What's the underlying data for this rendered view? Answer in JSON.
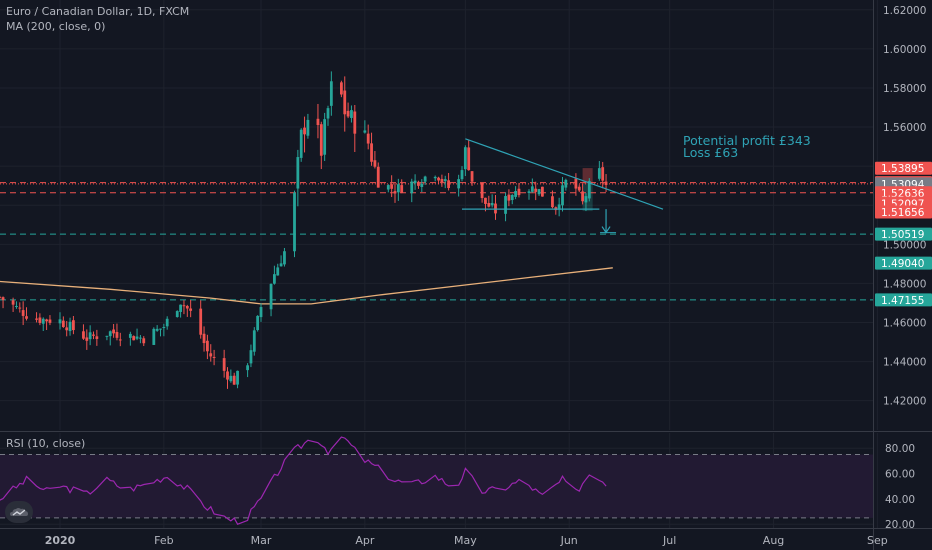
{
  "header": {
    "symbol_line": "Euro / Canadian Dollar, 1D, FXCM",
    "indicator_line": "MA (200, close, 0)",
    "rsi_line": "RSI (10, close)"
  },
  "annotations": [
    "Potential profit £343",
    "Loss £63"
  ],
  "colors": {
    "background": "#131722",
    "up": "#26a69a",
    "down": "#ef5350",
    "ma": "#e8b07a",
    "trendline": "#2fa3b5",
    "rsi_line": "#9c27b0",
    "rsi_band": "#221a33",
    "red_level": "#ef5350",
    "green_level": "#26a69a",
    "text": "#b2b5be"
  },
  "chart_data": [
    {
      "type": "candlestick",
      "x_ticks": [
        "2020",
        "Feb",
        "Mar",
        "Apr",
        "May",
        "Jun",
        "Jul",
        "Aug",
        "Sep"
      ],
      "x_tick_days": [
        0,
        31,
        60,
        91,
        121,
        152,
        182,
        213,
        244
      ],
      "y_ticks": [
        1.42,
        1.44,
        1.46,
        1.48,
        1.5,
        1.52,
        1.54,
        1.56,
        1.58,
        1.6,
        1.62
      ],
      "ylim": [
        1.405,
        1.625
      ],
      "red_levels": [
        1.53155,
        1.52636
      ],
      "green_levels": [
        1.50519,
        1.47155
      ],
      "current_price_level": 1.53094,
      "price_labels": [
        {
          "text": "1.53895",
          "value": 1.53895,
          "color": "#ef5350"
        },
        {
          "text": "1.53155",
          "value": 1.53155,
          "color": "#ef5350"
        },
        {
          "text": "1.53094",
          "value": 1.53094,
          "color": "#787b86"
        },
        {
          "text": "1.52636",
          "value": 1.52636,
          "color": "#ef5350"
        },
        {
          "text": "01:14:51",
          "value": 1.5211,
          "color": "#ef5350"
        },
        {
          "text": "1.52097",
          "value": 1.52097,
          "color": "#ef5350"
        },
        {
          "text": "1.51656",
          "value": 1.51656,
          "color": "#ef5350"
        },
        {
          "text": "1.50519",
          "value": 1.50519,
          "color": "#26a69a"
        },
        {
          "text": "1.49040",
          "value": 1.4904,
          "color": "#26a69a"
        },
        {
          "text": "1.47155",
          "value": 1.47155,
          "color": "#26a69a"
        }
      ],
      "series": [
        {
          "name": "MA (200, close, 0)",
          "points": [
            [
              -18,
              1.481
            ],
            [
              15,
              1.477
            ],
            [
              45,
              1.4725
            ],
            [
              60,
              1.4695
            ],
            [
              75,
              1.4695
            ],
            [
              95,
              1.474
            ],
            [
              120,
              1.479
            ],
            [
              140,
              1.483
            ],
            [
              165,
              1.488
            ]
          ]
        }
      ],
      "trendlines": [
        {
          "from": [
            121,
            1.554
          ],
          "to": [
            180,
            1.518
          ]
        },
        {
          "from": [
            120,
            1.518
          ],
          "to": [
            161,
            1.518
          ]
        }
      ],
      "target_arrow": {
        "x": 163,
        "from": 1.518,
        "to": 1.506
      },
      "loss_zone": {
        "from_day": 156,
        "to_day": 159,
        "low": 1.531,
        "high": 1.539
      },
      "profit_zone": {
        "from_day": 156,
        "to_day": 159,
        "low": 1.517,
        "high": 1.531
      },
      "anchors": [
        [
          -18,
          1.473
        ],
        [
          -8,
          1.462
        ],
        [
          0,
          1.461
        ],
        [
          8,
          1.452
        ],
        [
          15,
          1.455
        ],
        [
          25,
          1.452
        ],
        [
          31,
          1.458
        ],
        [
          36,
          1.471
        ],
        [
          40,
          1.463
        ],
        [
          44,
          1.445
        ],
        [
          48,
          1.437
        ],
        [
          52,
          1.43
        ],
        [
          56,
          1.44
        ],
        [
          60,
          1.468
        ],
        [
          64,
          1.485
        ],
        [
          68,
          1.5
        ],
        [
          70,
          1.525
        ],
        [
          72,
          1.555
        ],
        [
          75,
          1.572
        ],
        [
          78,
          1.548
        ],
        [
          82,
          1.59
        ],
        [
          85,
          1.568
        ],
        [
          88,
          1.562
        ],
        [
          92,
          1.552
        ],
        [
          95,
          1.532
        ],
        [
          100,
          1.528
        ],
        [
          106,
          1.532
        ],
        [
          112,
          1.537
        ],
        [
          118,
          1.525
        ],
        [
          121,
          1.548
        ],
        [
          124,
          1.525
        ],
        [
          130,
          1.517
        ],
        [
          136,
          1.528
        ],
        [
          142,
          1.529
        ],
        [
          148,
          1.519
        ],
        [
          152,
          1.536
        ],
        [
          156,
          1.521
        ],
        [
          159,
          1.534
        ],
        [
          161,
          1.537
        ],
        [
          163,
          1.53
        ]
      ]
    },
    {
      "type": "line",
      "name": "RSI (10, close)",
      "y_ticks": [
        20,
        40,
        60,
        80
      ],
      "ylim": [
        17,
        92
      ],
      "band": [
        25,
        75
      ],
      "anchors": [
        [
          -18,
          40
        ],
        [
          -10,
          55
        ],
        [
          -4,
          46
        ],
        [
          0,
          50
        ],
        [
          8,
          44
        ],
        [
          14,
          55
        ],
        [
          20,
          47
        ],
        [
          26,
          52
        ],
        [
          32,
          58
        ],
        [
          38,
          48
        ],
        [
          44,
          33
        ],
        [
          50,
          24
        ],
        [
          55,
          22
        ],
        [
          60,
          40
        ],
        [
          66,
          65
        ],
        [
          70,
          78
        ],
        [
          76,
          90
        ],
        [
          80,
          78
        ],
        [
          85,
          88
        ],
        [
          90,
          72
        ],
        [
          95,
          64
        ],
        [
          100,
          54
        ],
        [
          106,
          52
        ],
        [
          112,
          58
        ],
        [
          118,
          48
        ],
        [
          121,
          62
        ],
        [
          126,
          46
        ],
        [
          132,
          48
        ],
        [
          138,
          55
        ],
        [
          144,
          42
        ],
        [
          150,
          55
        ],
        [
          154,
          45
        ],
        [
          158,
          60
        ],
        [
          161,
          57
        ],
        [
          163,
          52
        ]
      ]
    }
  ]
}
